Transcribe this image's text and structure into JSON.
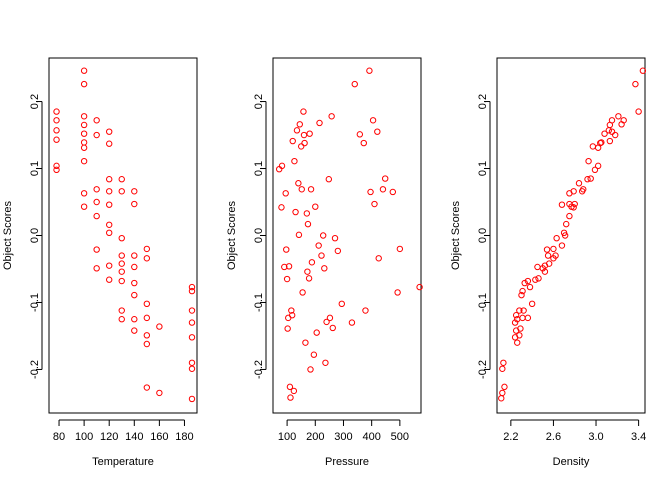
{
  "chart_data": [
    {
      "type": "scatter",
      "title": "",
      "xlabel": "Temperature",
      "ylabel": "Object Scores",
      "xlim": [
        72,
        190
      ],
      "ylim": [
        -0.265,
        0.265
      ],
      "xticks": [
        80,
        100,
        120,
        140,
        160,
        180
      ],
      "yticks": [
        -0.2,
        -0.1,
        0.0,
        0.1,
        0.2
      ],
      "color": "#ff0000",
      "points": [
        [
          78,
          0.185
        ],
        [
          78,
          0.172
        ],
        [
          78,
          0.157
        ],
        [
          78,
          0.143
        ],
        [
          78,
          0.104
        ],
        [
          78,
          0.098
        ],
        [
          100,
          0.246
        ],
        [
          100,
          0.226
        ],
        [
          100,
          0.178
        ],
        [
          100,
          0.165
        ],
        [
          100,
          0.152
        ],
        [
          100,
          0.139
        ],
        [
          100,
          0.131
        ],
        [
          100,
          0.111
        ],
        [
          100,
          0.063
        ],
        [
          100,
          0.043
        ],
        [
          110,
          0.172
        ],
        [
          110,
          0.15
        ],
        [
          110,
          0.069
        ],
        [
          110,
          0.05
        ],
        [
          110,
          0.029
        ],
        [
          110,
          -0.021
        ],
        [
          110,
          -0.049
        ],
        [
          120,
          0.155
        ],
        [
          120,
          0.137
        ],
        [
          120,
          0.084
        ],
        [
          120,
          0.066
        ],
        [
          120,
          0.046
        ],
        [
          120,
          0.016
        ],
        [
          120,
          0.004
        ],
        [
          120,
          -0.045
        ],
        [
          120,
          -0.066
        ],
        [
          130,
          0.084
        ],
        [
          130,
          0.066
        ],
        [
          130,
          -0.004
        ],
        [
          130,
          -0.03
        ],
        [
          130,
          -0.042
        ],
        [
          130,
          -0.054
        ],
        [
          130,
          -0.068
        ],
        [
          130,
          -0.112
        ],
        [
          130,
          -0.125
        ],
        [
          140,
          0.066
        ],
        [
          140,
          0.047
        ],
        [
          140,
          -0.03
        ],
        [
          140,
          -0.047
        ],
        [
          140,
          -0.071
        ],
        [
          140,
          -0.089
        ],
        [
          140,
          -0.125
        ],
        [
          140,
          -0.142
        ],
        [
          150,
          -0.02
        ],
        [
          150,
          -0.034
        ],
        [
          150,
          -0.102
        ],
        [
          150,
          -0.123
        ],
        [
          150,
          -0.149
        ],
        [
          150,
          -0.162
        ],
        [
          150,
          -0.227
        ],
        [
          160,
          -0.136
        ],
        [
          160,
          -0.235
        ],
        [
          186,
          -0.077
        ],
        [
          186,
          -0.083
        ],
        [
          186,
          -0.112
        ],
        [
          186,
          -0.13
        ],
        [
          186,
          -0.152
        ],
        [
          186,
          -0.19
        ],
        [
          186,
          -0.199
        ],
        [
          186,
          -0.244
        ]
      ]
    },
    {
      "type": "scatter",
      "title": "",
      "xlabel": "Pressure",
      "ylabel": "Object Scores",
      "xlim": [
        50,
        575
      ],
      "ylim": [
        -0.265,
        0.265
      ],
      "xticks": [
        100,
        200,
        300,
        400,
        500
      ],
      "yticks": [
        -0.2,
        -0.1,
        0.0,
        0.1,
        0.2
      ],
      "color": "#ff0000",
      "points": [
        [
          72,
          0.099
        ],
        [
          82,
          0.104
        ],
        [
          80,
          0.042
        ],
        [
          90,
          -0.047
        ],
        [
          95,
          0.063
        ],
        [
          97,
          -0.021
        ],
        [
          100,
          -0.065
        ],
        [
          102,
          -0.139
        ],
        [
          104,
          -0.123
        ],
        [
          107,
          -0.046
        ],
        [
          110,
          -0.226
        ],
        [
          112,
          -0.242
        ],
        [
          115,
          -0.112
        ],
        [
          118,
          -0.119
        ],
        [
          120,
          0.141
        ],
        [
          124,
          -0.232
        ],
        [
          126,
          0.111
        ],
        [
          130,
          0.035
        ],
        [
          135,
          0.157
        ],
        [
          140,
          0.078
        ],
        [
          142,
          0.001
        ],
        [
          145,
          0.166
        ],
        [
          150,
          0.133
        ],
        [
          152,
          0.069
        ],
        [
          155,
          -0.085
        ],
        [
          158,
          0.185
        ],
        [
          160,
          0.15
        ],
        [
          162,
          0.138
        ],
        [
          165,
          -0.16
        ],
        [
          170,
          0.033
        ],
        [
          172,
          -0.054
        ],
        [
          174,
          0.017
        ],
        [
          178,
          -0.064
        ],
        [
          180,
          0.152
        ],
        [
          183,
          -0.2
        ],
        [
          185,
          0.069
        ],
        [
          188,
          -0.04
        ],
        [
          195,
          -0.178
        ],
        [
          200,
          0.043
        ],
        [
          205,
          -0.145
        ],
        [
          212,
          -0.015
        ],
        [
          215,
          0.168
        ],
        [
          222,
          -0.03
        ],
        [
          228,
          0.0
        ],
        [
          232,
          -0.049
        ],
        [
          236,
          -0.19
        ],
        [
          240,
          -0.129
        ],
        [
          248,
          0.084
        ],
        [
          252,
          -0.123
        ],
        [
          258,
          0.178
        ],
        [
          262,
          -0.138
        ],
        [
          270,
          -0.004
        ],
        [
          280,
          -0.023
        ],
        [
          294,
          -0.102
        ],
        [
          330,
          -0.13
        ],
        [
          340,
          0.226
        ],
        [
          358,
          0.151
        ],
        [
          372,
          0.138
        ],
        [
          378,
          -0.112
        ],
        [
          392,
          0.246
        ],
        [
          396,
          0.065
        ],
        [
          405,
          0.172
        ],
        [
          410,
          0.047
        ],
        [
          420,
          0.155
        ],
        [
          425,
          -0.034
        ],
        [
          440,
          0.069
        ],
        [
          448,
          0.085
        ],
        [
          475,
          0.065
        ],
        [
          492,
          -0.085
        ],
        [
          500,
          -0.02
        ],
        [
          570,
          -0.077
        ]
      ]
    },
    {
      "type": "scatter",
      "title": "",
      "xlabel": "Density",
      "ylabel": "Object Scores",
      "xlim": [
        2.07,
        3.46
      ],
      "ylim": [
        -0.265,
        0.265
      ],
      "xticks": [
        2.2,
        2.6,
        3.0,
        3.4
      ],
      "yticks": [
        -0.2,
        -0.1,
        0.0,
        0.1,
        0.2
      ],
      "color": "#ff0000",
      "points": [
        [
          2.11,
          -0.243
        ],
        [
          2.12,
          -0.235
        ],
        [
          2.14,
          -0.226
        ],
        [
          2.12,
          -0.199
        ],
        [
          2.13,
          -0.19
        ],
        [
          2.26,
          -0.16
        ],
        [
          2.24,
          -0.152
        ],
        [
          2.28,
          -0.149
        ],
        [
          2.25,
          -0.142
        ],
        [
          2.29,
          -0.139
        ],
        [
          2.24,
          -0.13
        ],
        [
          2.26,
          -0.125
        ],
        [
          2.31,
          -0.123
        ],
        [
          2.36,
          -0.123
        ],
        [
          2.28,
          -0.112
        ],
        [
          2.25,
          -0.119
        ],
        [
          2.4,
          -0.102
        ],
        [
          2.32,
          -0.112
        ],
        [
          2.3,
          -0.089
        ],
        [
          2.31,
          -0.083
        ],
        [
          2.38,
          -0.077
        ],
        [
          2.33,
          -0.071
        ],
        [
          2.36,
          -0.068
        ],
        [
          2.43,
          -0.066
        ],
        [
          2.46,
          -0.064
        ],
        [
          2.52,
          -0.054
        ],
        [
          2.45,
          -0.047
        ],
        [
          2.5,
          -0.049
        ],
        [
          2.52,
          -0.045
        ],
        [
          2.56,
          -0.042
        ],
        [
          2.6,
          -0.034
        ],
        [
          2.55,
          -0.03
        ],
        [
          2.62,
          -0.03
        ],
        [
          2.54,
          -0.021
        ],
        [
          2.6,
          -0.02
        ],
        [
          2.68,
          -0.015
        ],
        [
          2.63,
          -0.004
        ],
        [
          2.71,
          0.0
        ],
        [
          2.7,
          0.004
        ],
        [
          2.72,
          0.017
        ],
        [
          2.75,
          0.029
        ],
        [
          2.77,
          0.043
        ],
        [
          2.79,
          0.042
        ],
        [
          2.75,
          0.047
        ],
        [
          2.68,
          0.046
        ],
        [
          2.8,
          0.047
        ],
        [
          2.75,
          0.063
        ],
        [
          2.79,
          0.066
        ],
        [
          2.87,
          0.066
        ],
        [
          2.88,
          0.069
        ],
        [
          2.84,
          0.078
        ],
        [
          2.92,
          0.084
        ],
        [
          2.95,
          0.085
        ],
        [
          2.99,
          0.098
        ],
        [
          3.02,
          0.104
        ],
        [
          2.93,
          0.111
        ],
        [
          3.02,
          0.131
        ],
        [
          2.97,
          0.133
        ],
        [
          3.04,
          0.138
        ],
        [
          3.05,
          0.139
        ],
        [
          3.13,
          0.141
        ],
        [
          3.08,
          0.152
        ],
        [
          3.15,
          0.155
        ],
        [
          3.12,
          0.157
        ],
        [
          3.18,
          0.15
        ],
        [
          3.13,
          0.165
        ],
        [
          3.24,
          0.166
        ],
        [
          3.15,
          0.172
        ],
        [
          3.26,
          0.172
        ],
        [
          3.21,
          0.178
        ],
        [
          3.4,
          0.185
        ],
        [
          3.37,
          0.226
        ],
        [
          3.44,
          0.246
        ]
      ]
    }
  ]
}
